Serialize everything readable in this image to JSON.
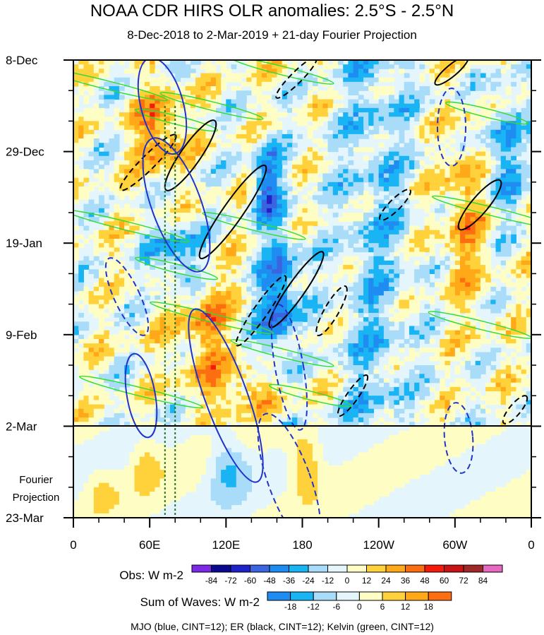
{
  "title": "NOAA CDR HIRS OLR anomalies: 2.5°S - 2.5°N",
  "subtitle": "8-Dec-2018 to 2-Mar-2019 + 21-day Fourier Projection",
  "chart_data": {
    "type": "heatmap",
    "x_tick_labels": [
      "0",
      "60E",
      "120E",
      "180",
      "120W",
      "60W",
      "0"
    ],
    "x_values_deg_east": [
      0,
      60,
      120,
      180,
      240,
      300,
      360
    ],
    "y_tick_labels": [
      "8-Dec",
      "29-Dec",
      "19-Jan",
      "9-Feb",
      "2-Mar",
      "23-Mar"
    ],
    "y_dates": [
      "2018-12-08",
      "2018-12-29",
      "2019-01-19",
      "2019-02-09",
      "2019-03-02",
      "2019-03-23"
    ],
    "projection_start": "2019-03-02",
    "projection_label_line1": "Fourier",
    "projection_label_line2": "Projection",
    "obs_colorbar": {
      "label": "Obs: W m-2",
      "levels": [
        -84,
        -72,
        -60,
        -48,
        -36,
        -24,
        -12,
        0,
        12,
        24,
        36,
        48,
        60,
        72,
        84
      ],
      "colors": [
        "#7d2ae8",
        "#0a0a90",
        "#1e22c8",
        "#3a64e0",
        "#1e8cf0",
        "#18b4f4",
        "#a8dcf8",
        "#e4f6fc",
        "#fefec4",
        "#ffd23c",
        "#ffa818",
        "#fc6e10",
        "#f51a0a",
        "#c81414",
        "#a02828",
        "#e668c0"
      ]
    },
    "wave_colorbar": {
      "label": "Sum of Waves: W m-2",
      "levels": [
        -18,
        -12,
        -6,
        0,
        6,
        12,
        18
      ],
      "colors": [
        "#1e8cf0",
        "#18b4f4",
        "#a8dcf8",
        "#e4f6fc",
        "#fefec4",
        "#ffd23c",
        "#ffa818",
        "#fc6e10"
      ]
    },
    "footer": "MJO (blue, CINT=12); ER (black, CINT=12); Kelvin (green, CINT=12)"
  }
}
